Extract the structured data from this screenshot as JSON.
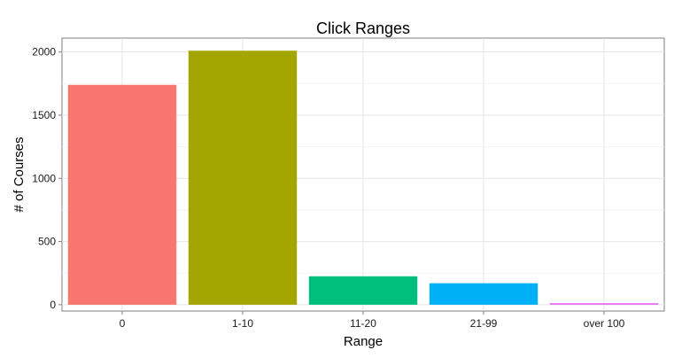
{
  "chart_data": {
    "type": "bar",
    "title": "Click Ranges",
    "xlabel": "Range",
    "ylabel": "# of Courses",
    "categories": [
      "0",
      "1-10",
      "11-20",
      "21-99",
      "over 100"
    ],
    "values": [
      1740,
      2010,
      225,
      170,
      12
    ],
    "colors": [
      "#F8766D",
      "#A3A500",
      "#00BF7D",
      "#00B0F6",
      "#E76BF3"
    ],
    "ylim": [
      -50,
      2110
    ],
    "yticks": [
      0,
      500,
      1000,
      1500,
      2000
    ],
    "yticks_minor": [
      250,
      750,
      1250,
      1750
    ],
    "grid": true,
    "legend": "none"
  }
}
